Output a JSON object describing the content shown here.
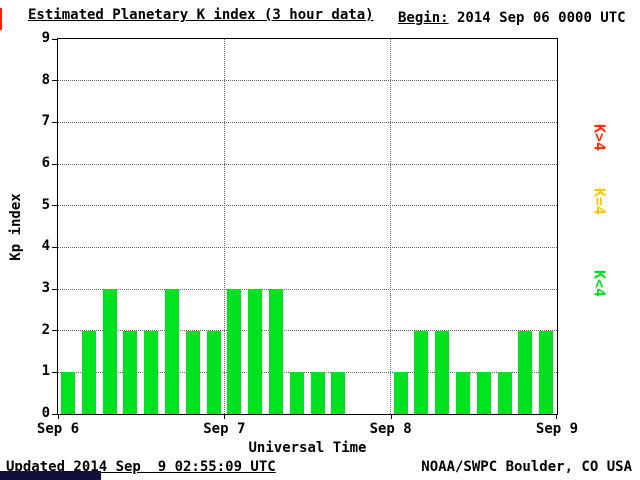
{
  "header": {
    "title": "Estimated Planetary K index (3 hour data)",
    "begin_label": "Begin:",
    "begin_value": " 2014 Sep 06 0000 UTC"
  },
  "footer": {
    "updated": "Updated 2014 Sep  9 02:55:09 UTC",
    "source": "NOAA/SWPC Boulder, CO USA"
  },
  "legend": [
    {
      "name": "legend-k-gt-4",
      "label": "K>4",
      "color": "#ff2a00"
    },
    {
      "name": "legend-k-eq-4",
      "label": "K=4",
      "color": "#ffc600"
    },
    {
      "name": "legend-k-lt-4",
      "label": "K<4",
      "color": "#00e11f"
    }
  ],
  "chart_data": {
    "type": "bar",
    "title": "Estimated Planetary K index (3 hour data)",
    "xlabel": "Universal Time",
    "ylabel": "Kp index",
    "begin": "2014 Sep 06 0000 UTC",
    "interval_hours": 3,
    "ylim": [
      0,
      9
    ],
    "yticks": [
      0,
      1,
      2,
      3,
      4,
      5,
      6,
      7,
      8,
      9
    ],
    "day_labels": [
      "Sep 6",
      "Sep 7",
      "Sep 8",
      "Sep 9"
    ],
    "values": [
      1,
      2,
      3,
      2,
      2,
      3,
      2,
      2,
      3,
      3,
      3,
      1,
      1,
      1,
      0,
      0,
      1,
      2,
      2,
      1,
      1,
      1,
      2,
      2
    ],
    "values_by_day": {
      "Sep 6": [
        1,
        2,
        3,
        2,
        2,
        3,
        2,
        2
      ],
      "Sep 7": [
        3,
        3,
        3,
        1,
        1,
        1,
        0,
        0
      ],
      "Sep 8": [
        1,
        2,
        2,
        1,
        1,
        1,
        2,
        2
      ]
    },
    "color_rule": "green if K<4, yellow if K=4, red if K>4",
    "grid": "dotted horizontal lines at each integer, dotted vertical lines at day boundaries",
    "legend_position": "right, rotated vertical"
  }
}
